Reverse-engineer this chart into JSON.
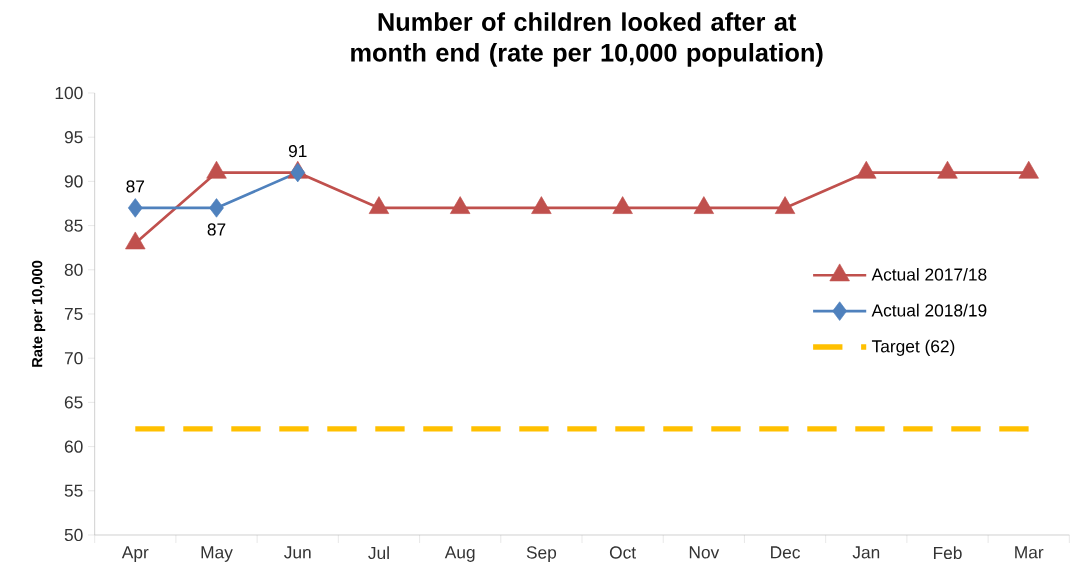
{
  "chart_data": {
    "type": "line",
    "title": "Number of children looked after at month end (rate per 10,000 population)",
    "ylabel": "Rate per 10,000",
    "categories": [
      "Apr",
      "May",
      "Jun",
      "Jul",
      "Aug",
      "Sep",
      "Oct",
      "Nov",
      "Dec",
      "Jan",
      "Feb",
      "Mar"
    ],
    "series": [
      {
        "name": "Actual 2017/18",
        "color": "#c0504d",
        "marker": "triangle",
        "line_style": "solid",
        "values": [
          83,
          91,
          91,
          87,
          87,
          87,
          87,
          87,
          87,
          91,
          91,
          91
        ]
      },
      {
        "name": "Actual 2018/19",
        "color": "#4f81bd",
        "marker": "diamond",
        "line_style": "solid",
        "values": [
          87,
          87,
          91,
          null,
          null,
          null,
          null,
          null,
          null,
          null,
          null,
          null
        ],
        "value_labels": [
          "87",
          "87",
          "91",
          null,
          null,
          null,
          null,
          null,
          null,
          null,
          null,
          null
        ]
      },
      {
        "name": "Target (62)",
        "color": "#ffc000",
        "marker": "none",
        "line_style": "dashed",
        "values": [
          62,
          62,
          62,
          62,
          62,
          62,
          62,
          62,
          62,
          62,
          62,
          62
        ]
      }
    ],
    "ylim": [
      50,
      100
    ],
    "yticks": [
      50,
      55,
      60,
      65,
      70,
      75,
      80,
      85,
      90,
      95,
      100
    ],
    "grid": false,
    "legend": "right"
  }
}
